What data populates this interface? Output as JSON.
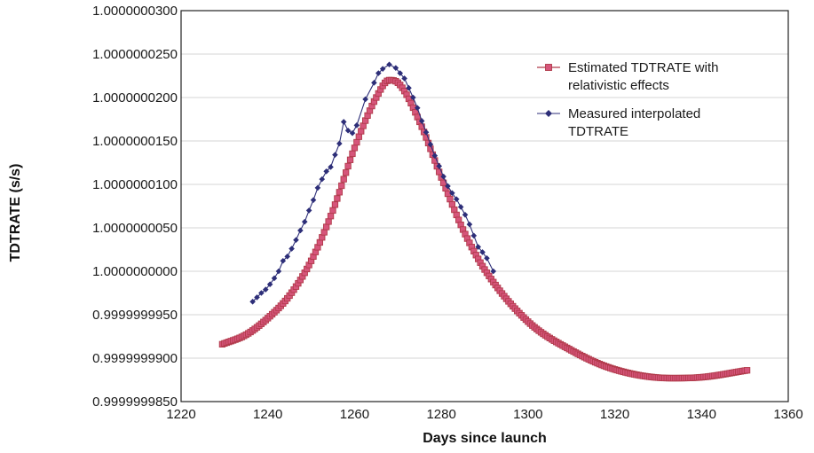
{
  "chart_data": {
    "type": "line",
    "title": "",
    "xlabel": "Days since launch",
    "ylabel": "TDTRATE (s/s)",
    "xlim": [
      1220,
      1360
    ],
    "ylim": [
      0.999999985,
      1.00000003
    ],
    "xticks": [
      1220,
      1240,
      1260,
      1280,
      1300,
      1320,
      1340,
      1360
    ],
    "yticks": [
      0.999999985,
      0.99999999,
      0.999999995,
      1.0,
      1.000000005,
      1.00000001,
      1.000000015,
      1.00000002,
      1.000000025,
      1.00000003
    ],
    "ytick_labels": [
      "0.9999999850",
      "0.9999999900",
      "0.9999999950",
      "1.0000000000",
      "1.0000000050",
      "1.0000000100",
      "1.0000000150",
      "1.0000000200",
      "1.0000000250",
      "1.0000000300"
    ],
    "grid": "horizontal",
    "legend_position": "top-right",
    "series": [
      {
        "name": "Estimated TDTRATE with relativistic effects",
        "color": "#b03a4a",
        "marker": "square",
        "x_start": 1229.5,
        "x_end": 1350.5,
        "x_step": 0.5,
        "anchors": [
          [
            1229.5,
            0.9999999916
          ],
          [
            1235,
            0.9999999927
          ],
          [
            1240,
            0.9999999946
          ],
          [
            1245,
            0.9999999972
          ],
          [
            1250,
            1.0000000012
          ],
          [
            1255,
            1.000000007
          ],
          [
            1260,
            1.0000000142
          ],
          [
            1265,
            1.00000002
          ],
          [
            1268,
            1.000000022
          ],
          [
            1270,
            1.0000000217
          ],
          [
            1275,
            1.0000000172
          ],
          [
            1280,
            1.0000000108
          ],
          [
            1285,
            1.0000000048
          ],
          [
            1290,
            1.0000000002
          ],
          [
            1300,
            0.9999999942
          ],
          [
            1310,
            0.9999999909
          ],
          [
            1320,
            0.9999999887
          ],
          [
            1333,
            0.9999999877
          ],
          [
            1340,
            0.9999999878
          ],
          [
            1350.5,
            0.9999999886
          ]
        ]
      },
      {
        "name": "Measured interpolated TDTRATE",
        "color": "#2d2e78",
        "marker": "diamond",
        "points": [
          [
            1236.5,
            0.9999999965
          ],
          [
            1237.5,
            0.999999997
          ],
          [
            1238.5,
            0.9999999975
          ],
          [
            1239.5,
            0.9999999979
          ],
          [
            1240.5,
            0.9999999985
          ],
          [
            1241.5,
            0.9999999992
          ],
          [
            1242.5,
            1.0
          ],
          [
            1243.5,
            1.0000000012
          ],
          [
            1244.5,
            1.0000000017
          ],
          [
            1245.5,
            1.0000000026
          ],
          [
            1246.5,
            1.0000000036
          ],
          [
            1247.5,
            1.0000000047
          ],
          [
            1248.5,
            1.0000000057
          ],
          [
            1249.5,
            1.000000007
          ],
          [
            1250.5,
            1.0000000082
          ],
          [
            1251.5,
            1.0000000096
          ],
          [
            1252.5,
            1.0000000106
          ],
          [
            1253.5,
            1.0000000115
          ],
          [
            1254.5,
            1.000000012
          ],
          [
            1255.5,
            1.0000000134
          ],
          [
            1256.5,
            1.0000000147
          ],
          [
            1257.5,
            1.0000000172
          ],
          [
            1258.5,
            1.0000000162
          ],
          [
            1259.5,
            1.0000000159
          ],
          [
            1260.5,
            1.0000000168
          ],
          [
            1262.5,
            1.0000000198
          ],
          [
            1264.5,
            1.0000000217
          ],
          [
            1265.5,
            1.0000000228
          ],
          [
            1266.5,
            1.0000000233
          ],
          [
            1268,
            1.0000000238
          ],
          [
            1269.5,
            1.0000000234
          ],
          [
            1270.5,
            1.0000000228
          ],
          [
            1271.5,
            1.0000000222
          ],
          [
            1272.5,
            1.0000000211
          ],
          [
            1273.5,
            1.00000002
          ],
          [
            1274.5,
            1.0000000188
          ],
          [
            1275.5,
            1.0000000173
          ],
          [
            1276.5,
            1.000000016
          ],
          [
            1277.5,
            1.0000000146
          ],
          [
            1278.5,
            1.0000000133
          ],
          [
            1279.5,
            1.0000000121
          ],
          [
            1280.5,
            1.0000000109
          ],
          [
            1281.5,
            1.0000000098
          ],
          [
            1282.5,
            1.000000009
          ],
          [
            1283.5,
            1.0000000083
          ],
          [
            1284.5,
            1.0000000074
          ],
          [
            1285.5,
            1.0000000065
          ],
          [
            1286.5,
            1.0000000054
          ],
          [
            1287.5,
            1.0000000041
          ],
          [
            1288.5,
            1.0000000028
          ],
          [
            1289.5,
            1.0000000022
          ],
          [
            1290.5,
            1.0000000015
          ],
          [
            1292,
            1.0
          ]
        ]
      }
    ]
  }
}
